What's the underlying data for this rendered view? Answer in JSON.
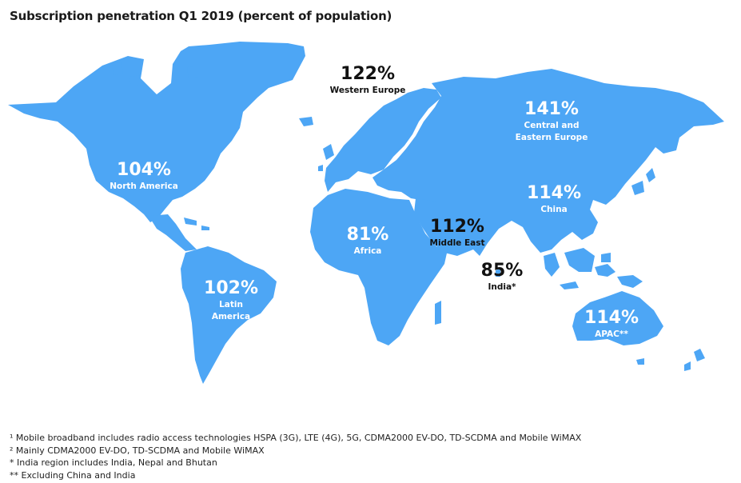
{
  "title": "Subscription penetration Q1 2019 (percent of population)",
  "map_color": "#4da6f5",
  "regions": {
    "north_america": {
      "value": "104%",
      "name": "North America"
    },
    "latin_america": {
      "value": "102%",
      "name_line1": "Latin",
      "name_line2": "America"
    },
    "western_europe": {
      "value": "122%",
      "name": "Western Europe"
    },
    "central_eastern_europe": {
      "value": "141%",
      "name_line1": "Central and",
      "name_line2": "Eastern Europe"
    },
    "africa": {
      "value": "81%",
      "name": "Africa"
    },
    "middle_east": {
      "value": "112%",
      "name": "Middle East"
    },
    "india": {
      "value": "85%",
      "name": "India*"
    },
    "china": {
      "value": "114%",
      "name": "China"
    },
    "apac": {
      "value": "114%",
      "name": "APAC**"
    }
  },
  "footnotes": [
    "¹ Mobile broadband includes radio access technologies HSPA (3G), LTE (4G), 5G, CDMA2000 EV-DO, TD-SCDMA and Mobile WiMAX",
    "² Mainly CDMA2000 EV-DO, TD-SCDMA and Mobile WiMAX",
    "* India region includes India, Nepal and Bhutan",
    "** Excluding China and India"
  ]
}
